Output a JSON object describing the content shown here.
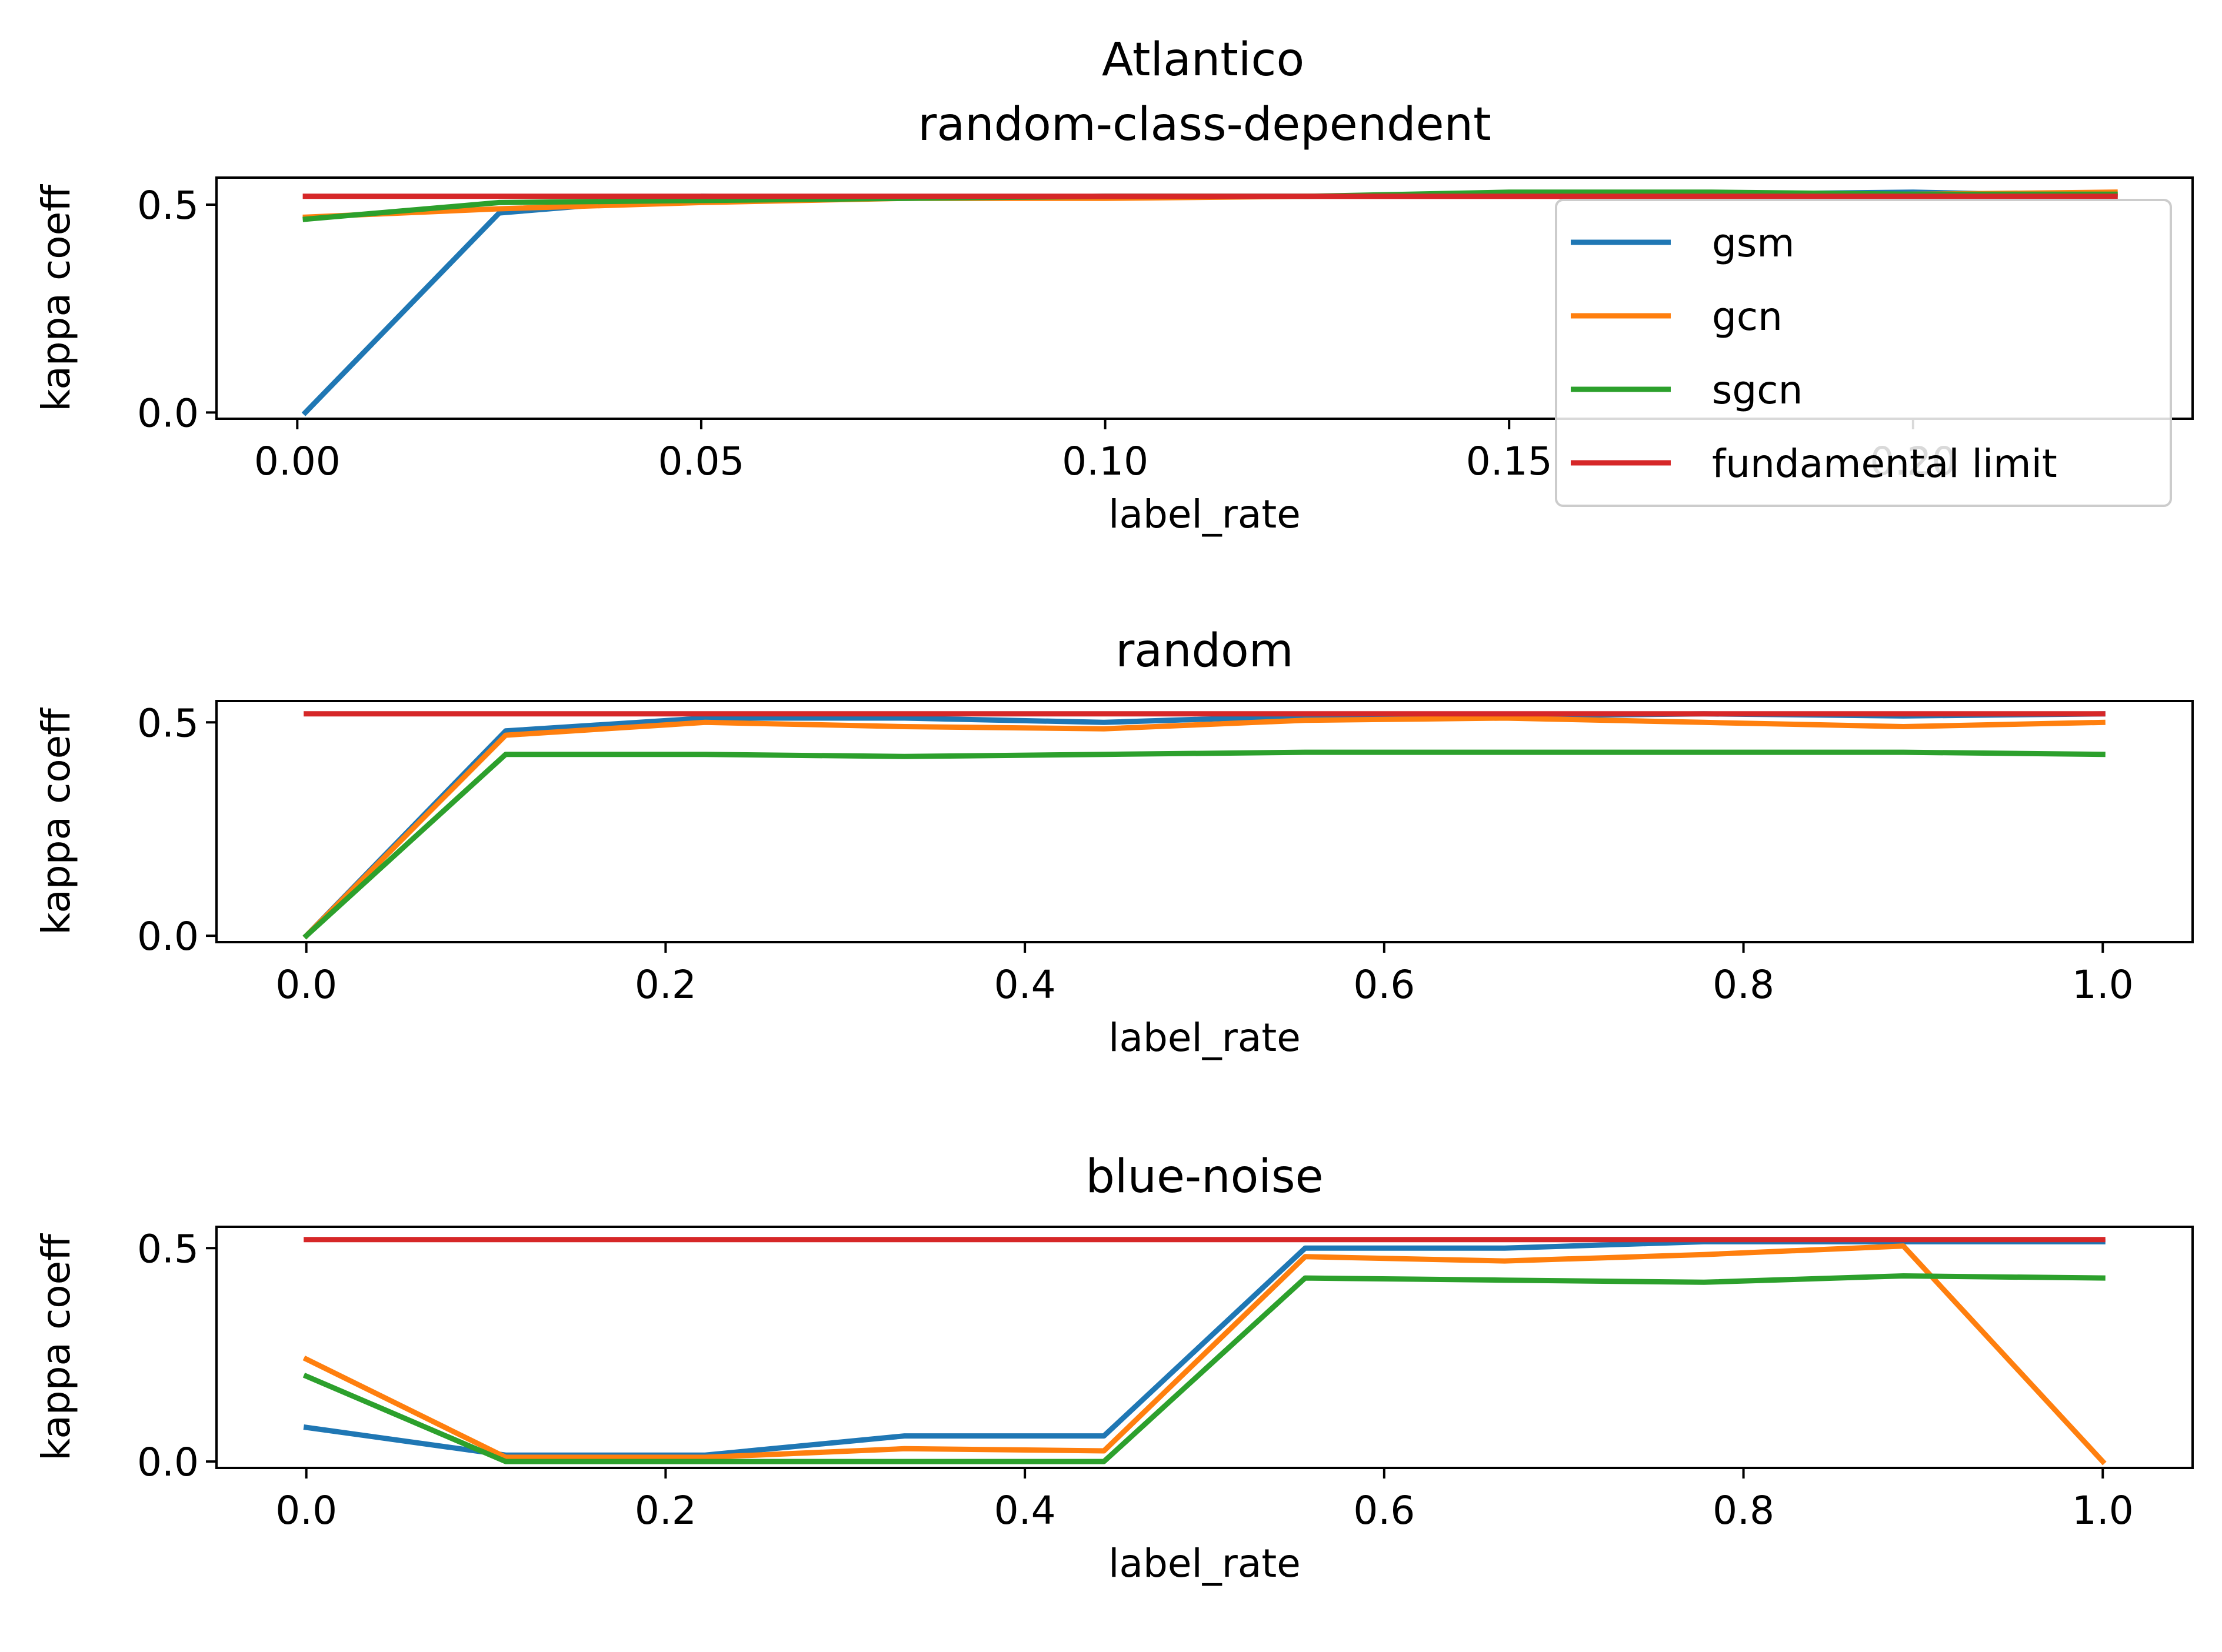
{
  "figure_title": "Atlantico",
  "chart_data": [
    {
      "type": "line",
      "title": "random-class-dependent",
      "xlabel": "label_rate",
      "ylabel": "kappa coeff",
      "xlim": [
        -0.01,
        0.2346
      ],
      "ylim": [
        -0.015,
        0.565
      ],
      "xticks": [
        0.0,
        0.05,
        0.1,
        0.15,
        0.2
      ],
      "xtick_labels": [
        "0.00",
        "0.05",
        "0.10",
        "0.15",
        "0.20"
      ],
      "yticks": [
        0.0,
        0.5
      ],
      "ytick_labels": [
        "0.0",
        "0.5"
      ],
      "x": [
        0.001,
        0.025,
        0.05,
        0.075,
        0.1,
        0.125,
        0.15,
        0.175,
        0.2,
        0.225
      ],
      "series": [
        {
          "name": "gsm",
          "color": "#1f77b4",
          "values": [
            0.0,
            0.48,
            0.52,
            0.515,
            0.52,
            0.52,
            0.525,
            0.525,
            0.53,
            0.52
          ]
        },
        {
          "name": "gcn",
          "color": "#ff7f0e",
          "values": [
            0.47,
            0.49,
            0.505,
            0.515,
            0.515,
            0.52,
            0.52,
            0.52,
            0.525,
            0.53
          ]
        },
        {
          "name": "sgcn",
          "color": "#2ca02c",
          "values": [
            0.465,
            0.505,
            0.51,
            0.515,
            0.52,
            0.52,
            0.53,
            0.53,
            0.525,
            0.525
          ]
        },
        {
          "name": "fundamental limit",
          "color": "#d62728",
          "values": [
            0.52,
            0.52,
            0.52,
            0.52,
            0.52,
            0.52,
            0.52,
            0.52,
            0.52,
            0.52
          ]
        }
      ],
      "legend": "right"
    },
    {
      "type": "line",
      "title": "random",
      "xlabel": "label_rate",
      "ylabel": "kappa coeff",
      "xlim": [
        -0.05,
        1.05
      ],
      "ylim": [
        -0.015,
        0.55
      ],
      "xticks": [
        0.0,
        0.2,
        0.4,
        0.6,
        0.8,
        1.0
      ],
      "xtick_labels": [
        "0.0",
        "0.2",
        "0.4",
        "0.6",
        "0.8",
        "1.0"
      ],
      "yticks": [
        0.0,
        0.5
      ],
      "ytick_labels": [
        "0.0",
        "0.5"
      ],
      "x": [
        0.0,
        0.111,
        0.222,
        0.333,
        0.444,
        0.556,
        0.667,
        0.778,
        0.889,
        1.0
      ],
      "series": [
        {
          "name": "gsm",
          "color": "#1f77b4",
          "values": [
            0.0,
            0.48,
            0.51,
            0.51,
            0.5,
            0.515,
            0.515,
            0.52,
            0.515,
            0.52
          ]
        },
        {
          "name": "gcn",
          "color": "#ff7f0e",
          "values": [
            0.0,
            0.47,
            0.5,
            0.49,
            0.485,
            0.505,
            0.51,
            0.5,
            0.49,
            0.5
          ]
        },
        {
          "name": "sgcn",
          "color": "#2ca02c",
          "values": [
            0.0,
            0.425,
            0.425,
            0.42,
            0.425,
            0.43,
            0.43,
            0.43,
            0.43,
            0.425
          ]
        },
        {
          "name": "fundamental limit",
          "color": "#d62728",
          "values": [
            0.52,
            0.52,
            0.52,
            0.52,
            0.52,
            0.52,
            0.52,
            0.52,
            0.52,
            0.52
          ]
        }
      ]
    },
    {
      "type": "line",
      "title": "blue-noise",
      "xlabel": "label_rate",
      "ylabel": "kappa coeff",
      "xlim": [
        -0.05,
        1.05
      ],
      "ylim": [
        -0.015,
        0.55
      ],
      "xticks": [
        0.0,
        0.2,
        0.4,
        0.6,
        0.8,
        1.0
      ],
      "xtick_labels": [
        "0.0",
        "0.2",
        "0.4",
        "0.6",
        "0.8",
        "1.0"
      ],
      "yticks": [
        0.0,
        0.5
      ],
      "ytick_labels": [
        "0.0",
        "0.5"
      ],
      "x": [
        0.0,
        0.111,
        0.222,
        0.333,
        0.444,
        0.556,
        0.667,
        0.778,
        0.889,
        1.0
      ],
      "series": [
        {
          "name": "gsm",
          "color": "#1f77b4",
          "values": [
            0.08,
            0.015,
            0.015,
            0.06,
            0.06,
            0.5,
            0.5,
            0.515,
            0.515,
            0.515
          ]
        },
        {
          "name": "gcn",
          "color": "#ff7f0e",
          "values": [
            0.24,
            0.01,
            0.01,
            0.03,
            0.025,
            0.48,
            0.47,
            0.485,
            0.505,
            0.0
          ]
        },
        {
          "name": "sgcn",
          "color": "#2ca02c",
          "values": [
            0.2,
            0.0,
            0.0,
            0.0,
            0.0,
            0.43,
            0.425,
            0.42,
            0.435,
            0.43
          ]
        },
        {
          "name": "fundamental limit",
          "color": "#d62728",
          "values": [
            0.52,
            0.52,
            0.52,
            0.52,
            0.52,
            0.52,
            0.52,
            0.52,
            0.52,
            0.52
          ]
        }
      ]
    }
  ]
}
